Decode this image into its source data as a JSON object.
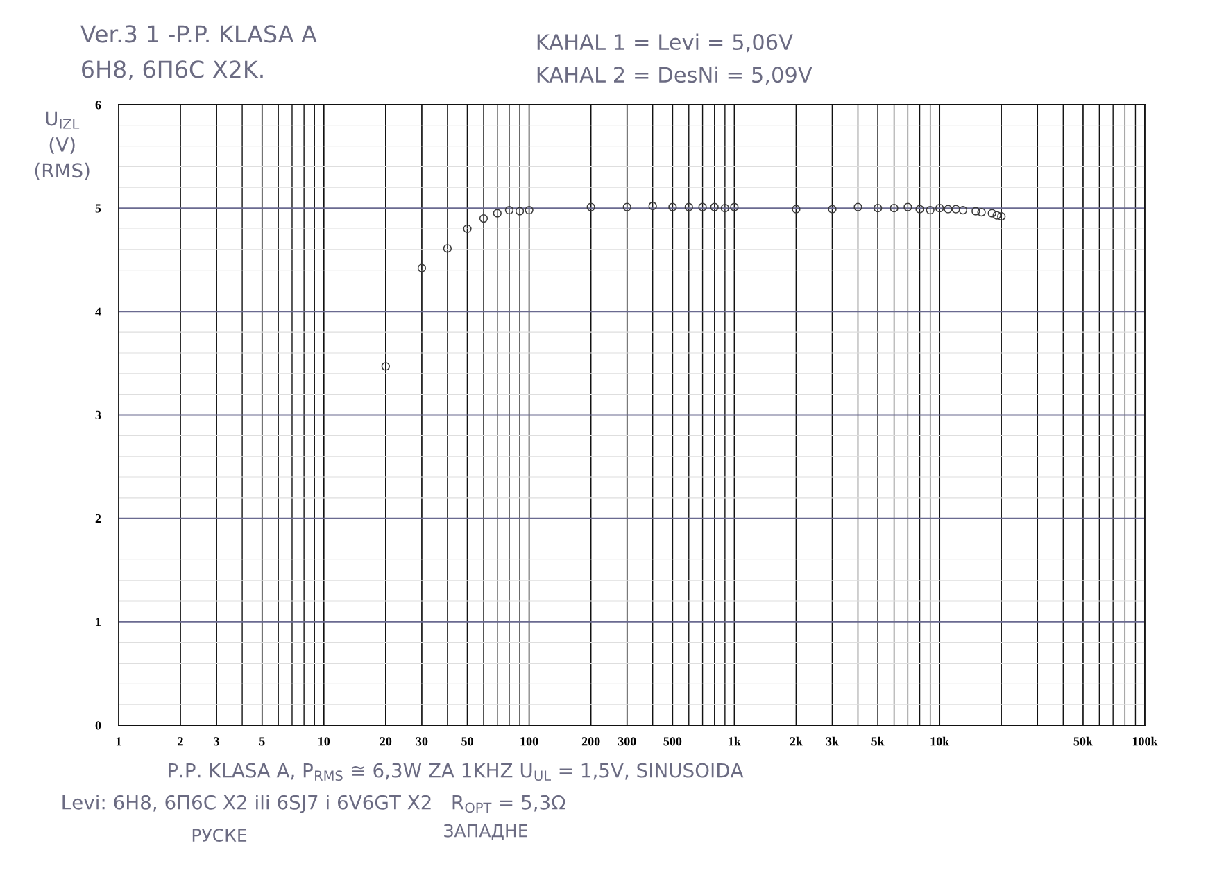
{
  "chart_data": {
    "type": "scatter",
    "title": "Ver.3 1 -P.P. KLASA A",
    "subtitle": "6H8, 6П6C X2K.",
    "ylabel": "U$_{IZL}$\n(V)\n(RMS)",
    "annotations": [
      "KAHAL 1 = Levi = 5,06V",
      "KAHAL 2 = DesNi = 5,09V",
      "P.P. KLASA A, P$_{RMS}$ ≅ 6,3W ZA 1KHZ U$_{UL}$ = 1,5V, SINUSOIDA",
      "Levi: 6H8, 6П6C X2 ili 6SJ7 i 6V6GT X2   R$_{OPT}$ = 5,3Ω",
      "РУСКЕ",
      "ЗАПАДНЕ"
    ],
    "x": [
      20,
      30,
      40,
      50,
      60,
      70,
      80,
      90,
      100,
      200,
      300,
      400,
      500,
      600,
      700,
      800,
      900,
      1000,
      2000,
      3000,
      4000,
      5000,
      6000,
      7000,
      8000,
      9000,
      10000,
      11000,
      12000,
      13000,
      15000,
      16000,
      18000,
      19000,
      20000
    ],
    "values": [
      3.47,
      4.42,
      4.61,
      4.8,
      4.9,
      4.95,
      4.98,
      4.97,
      4.98,
      5.01,
      5.01,
      5.02,
      5.01,
      5.01,
      5.01,
      5.01,
      5.0,
      5.01,
      4.99,
      4.99,
      5.01,
      5.0,
      5.0,
      5.01,
      4.99,
      4.98,
      5.0,
      4.99,
      4.99,
      4.98,
      4.97,
      4.96,
      4.95,
      4.93,
      4.92
    ],
    "color": "#3a3a3a",
    "marker": "circle",
    "log": "x",
    "xlim": [
      1,
      100000
    ],
    "ylim": [
      0,
      6
    ],
    "xticks": [
      1,
      2,
      3,
      5,
      10,
      20,
      30,
      50,
      100,
      200,
      300,
      500,
      {
        "value": 1000,
        "label": "1k"
      },
      {
        "value": 2000,
        "label": "2k"
      },
      {
        "value": 3000,
        "label": "3k"
      },
      {
        "value": 5000,
        "label": "5k"
      },
      {
        "value": 10000,
        "label": "10k"
      },
      {
        "value": 50000,
        "label": "50k"
      },
      {
        "value": 100000,
        "label": "100k"
      }
    ],
    "yticks": [
      0,
      1,
      2,
      3,
      4,
      5,
      6
    ],
    "grid": true
  }
}
